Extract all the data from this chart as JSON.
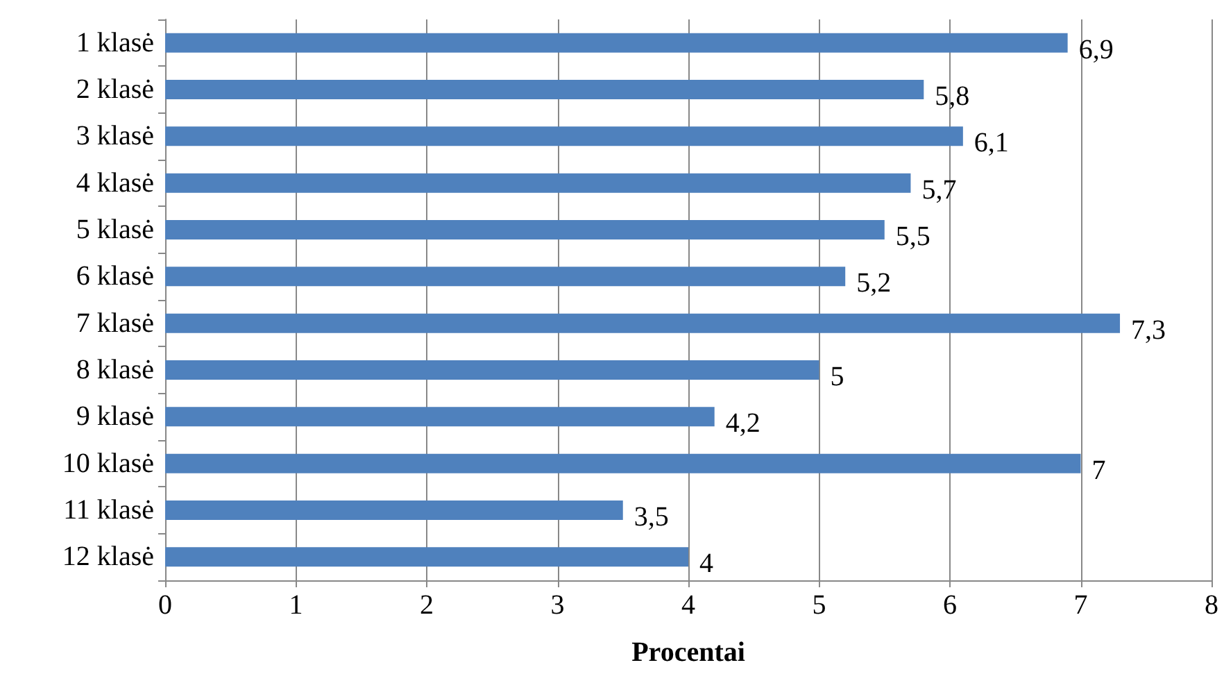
{
  "chart_data": {
    "type": "bar",
    "orientation": "horizontal",
    "xlabel": "Procentai",
    "categories": [
      "1 klasė",
      "2 klasė",
      "3 klasė",
      "4 klasė",
      "5 klasė",
      "6 klasė",
      "7 klasė",
      "8 klasė",
      "9 klasė",
      "10 klasė",
      "11 klasė",
      "12 klasė"
    ],
    "values": [
      6.9,
      5.8,
      6.1,
      5.7,
      5.5,
      5.2,
      7.3,
      5,
      4.2,
      7,
      3.5,
      4
    ],
    "value_labels": [
      "6,9",
      "5,8",
      "6,1",
      "5,7",
      "5,5",
      "5,2",
      "7,3",
      "5",
      "4,2",
      "7",
      "3,5",
      "4"
    ],
    "color": "#4f81bd",
    "xlim": [
      0,
      8
    ],
    "xticks": [
      0,
      1,
      2,
      3,
      4,
      5,
      6,
      7,
      8
    ],
    "grid": "x"
  }
}
